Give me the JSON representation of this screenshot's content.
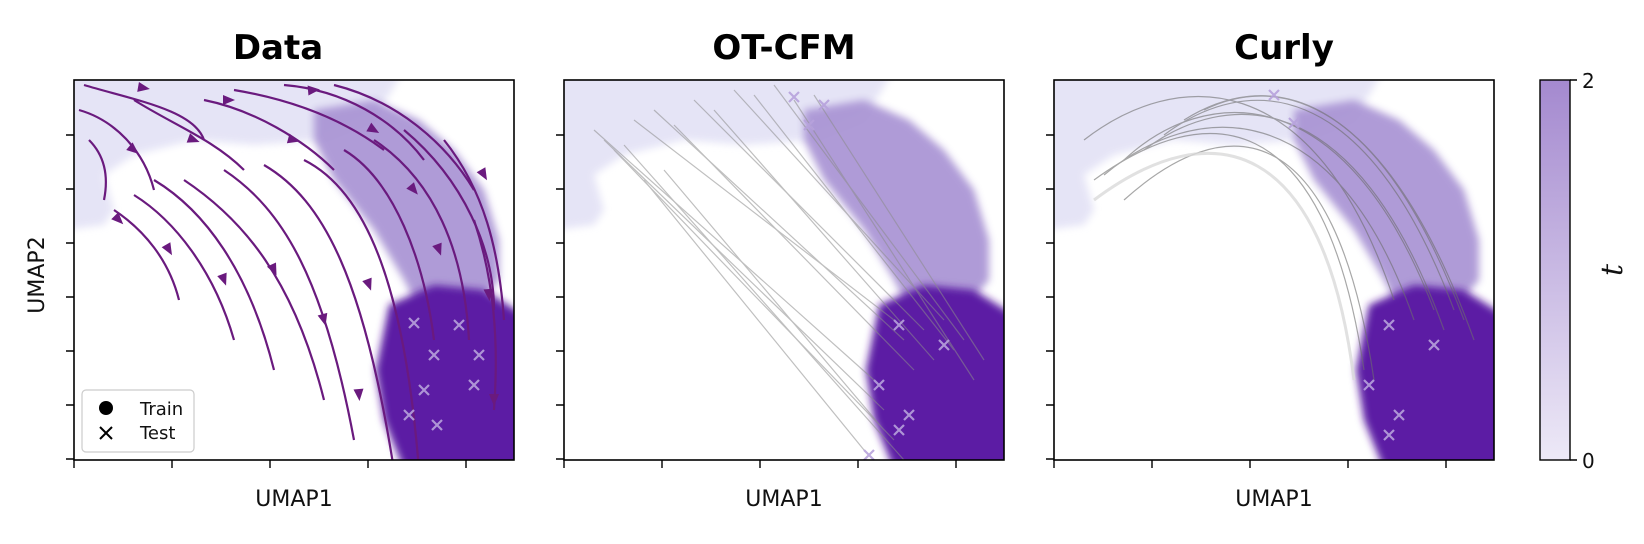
{
  "chart_data": [
    {
      "type": "scatter",
      "title": "Data",
      "xlabel": "UMAP1",
      "ylabel": "UMAP2",
      "overlay": "streamlines",
      "legend": {
        "placement": "lower-left",
        "entries": [
          {
            "marker": "circle",
            "label": "Train"
          },
          {
            "marker": "x",
            "label": "Test"
          }
        ]
      }
    },
    {
      "type": "scatter",
      "title": "OT-CFM",
      "xlabel": "UMAP1",
      "ylabel": "",
      "overlay": "straight trajectories"
    },
    {
      "type": "scatter",
      "title": "Curly",
      "xlabel": "UMAP1",
      "ylabel": "",
      "overlay": "curved trajectories"
    }
  ],
  "colorbar": {
    "label": "t",
    "min": "0",
    "max": "2",
    "min_value": 0,
    "max_value": 2,
    "colors": {
      "t0": "#e4e3f6",
      "t1": "#ab96d5",
      "t2": "#5b1aa4"
    }
  },
  "colors": {
    "stream": "#6a1a7e",
    "trajectory": "#8c8c8c"
  }
}
